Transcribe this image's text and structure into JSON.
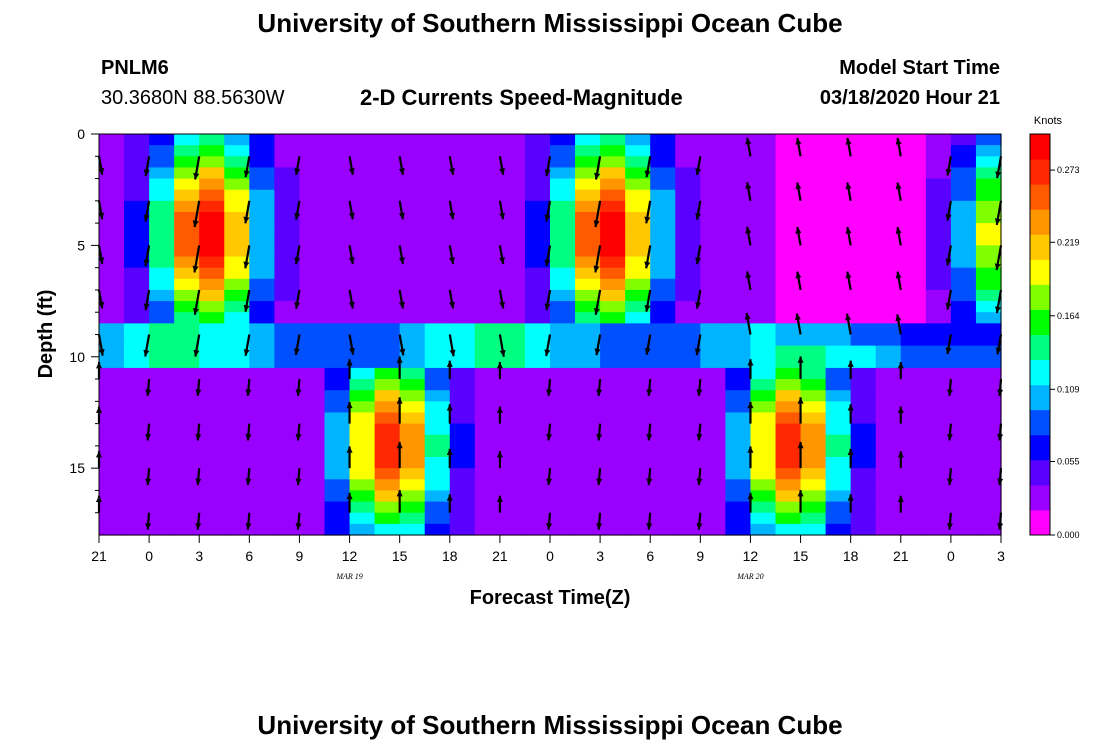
{
  "header": {
    "title": "University of Southern Mississippi Ocean Cube",
    "station": "PNLM6",
    "location": "30.3680N 88.5630W",
    "subtitle": "2-D Currents Speed-Magnitude",
    "model_start_label": "Model Start Time",
    "model_start_value": "03/18/2020 Hour 21"
  },
  "footer": {
    "title": "University of Southern Mississippi Ocean Cube"
  },
  "colors": {
    "scale": [
      "#ff00ff",
      "#9a00ff",
      "#5a00ff",
      "#0000ff",
      "#0050ff",
      "#00b4ff",
      "#00ffff",
      "#00ff80",
      "#00ff00",
      "#80ff00",
      "#ffff00",
      "#ffc800",
      "#ff9600",
      "#ff5a00",
      "#ff2800",
      "#ff0000"
    ],
    "arrow": "#000000"
  },
  "chart_data": {
    "type": "heatmap",
    "title": "2-D Currents Speed-Magnitude",
    "xlabel": "Forecast Time(Z)",
    "ylabel": "Depth (ft)",
    "x_ticks": [
      "21",
      "0",
      "3",
      "6",
      "9",
      "12",
      "15",
      "18",
      "21",
      "0",
      "3",
      "6",
      "9",
      "12",
      "15",
      "18",
      "21",
      "0",
      "3"
    ],
    "date_labels": [
      {
        "text": "MAR 19",
        "at_tick": 5
      },
      {
        "text": "MAR 20",
        "at_tick": 13
      }
    ],
    "y_ticks": [
      "0",
      "5",
      "10",
      "15"
    ],
    "ylim": [
      0,
      18
    ],
    "hours": [
      0,
      54
    ],
    "colorbar": {
      "label": "Knots",
      "ticks": [
        "0.000",
        "0.055",
        "0.109",
        "0.164",
        "0.219",
        "0.273"
      ],
      "range": [
        0,
        0.3
      ]
    },
    "vectors": {
      "columns_hours": [
        0,
        3,
        6,
        9,
        12,
        15,
        18,
        21,
        24,
        27,
        30,
        33,
        36,
        39,
        42,
        45,
        48,
        51,
        54
      ],
      "depths_ft": [
        1,
        3,
        5,
        7,
        9,
        11,
        13,
        15,
        17
      ]
    }
  }
}
